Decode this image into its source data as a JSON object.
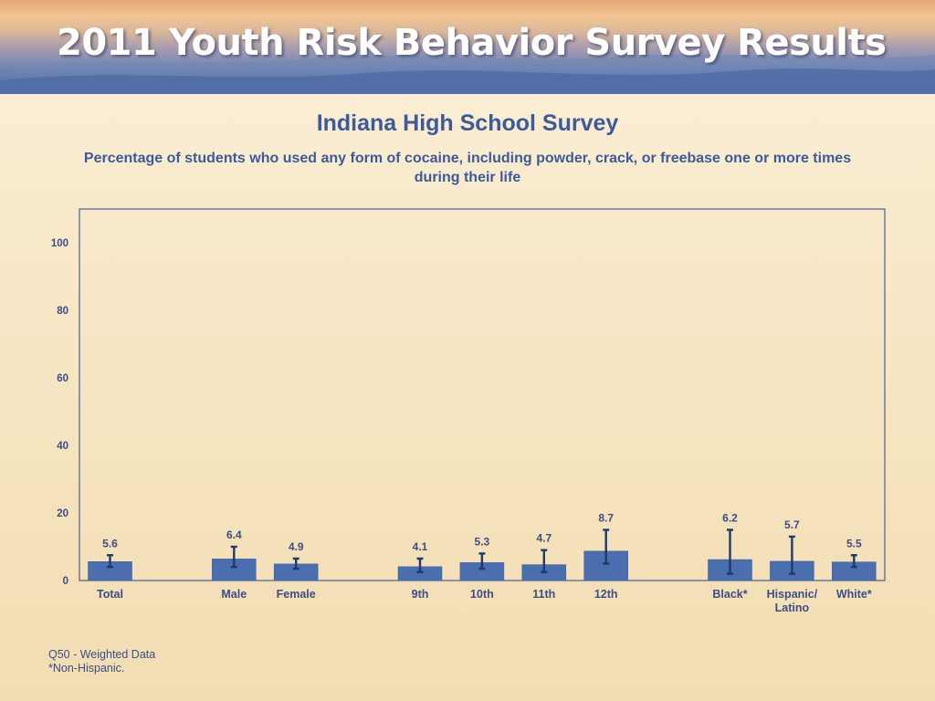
{
  "header": {
    "banner_title": "2011 Youth Risk Behavior Survey Results"
  },
  "chart_data": {
    "type": "bar",
    "title": "Indiana High School Survey",
    "subtitle": "Percentage of students who used any form of cocaine, including powder, crack, or freebase one or more times during their life",
    "xlabel": "",
    "ylabel": "",
    "ylim": [
      0,
      110
    ],
    "y_ticks": [
      0,
      20,
      40,
      60,
      80,
      100
    ],
    "grid": false,
    "legend": "none",
    "bar_color": "#4a6eae",
    "categories": [
      "Total",
      "Male",
      "Female",
      "9th",
      "10th",
      "11th",
      "12th",
      "Black*",
      "Hispanic/ Latino",
      "White*"
    ],
    "values": [
      5.6,
      6.4,
      4.9,
      4.1,
      5.3,
      4.7,
      8.7,
      6.2,
      5.7,
      5.5
    ],
    "ci_lower": [
      4.0,
      4.0,
      3.5,
      2.5,
      3.5,
      2.5,
      5.0,
      2.0,
      2.0,
      4.0
    ],
    "ci_upper": [
      7.5,
      10.0,
      6.5,
      6.5,
      8.0,
      9.0,
      15.0,
      15.0,
      13.0,
      7.5
    ],
    "value_label_heights": [
      7.5,
      10.0,
      6.5,
      6.5,
      8.0,
      9.0,
      15.0,
      15.0,
      13.0,
      7.5
    ]
  },
  "footnotes": {
    "line1": "Q50 - Weighted Data",
    "line2": "*Non-Hispanic."
  }
}
